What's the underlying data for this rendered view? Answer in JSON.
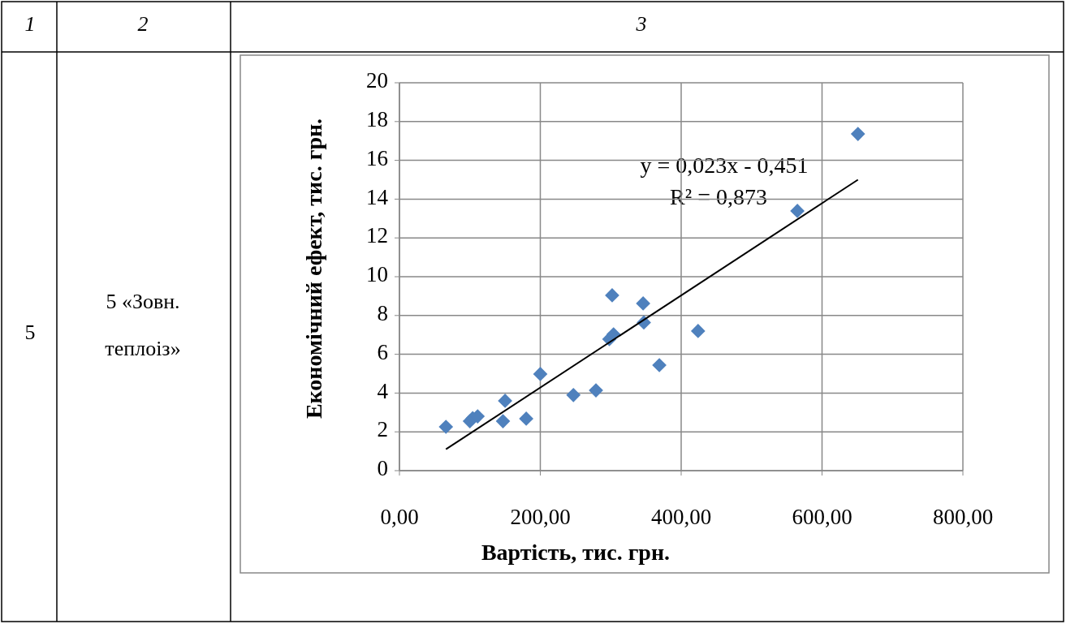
{
  "chart_data": {
    "type": "scatter",
    "xlabel": "Вартість, тис. грн.",
    "ylabel": "Економічний ефект, тис. грн.",
    "annotations": [
      "1",
      "2",
      "3",
      "5",
      "5 «Зовн. теплоіз»",
      "y = 0,023x - 0,451",
      "R² = 0,873"
    ],
    "series": [
      {
        "color": "#4f81bd",
        "marker": "diamond",
        "x": [
          66,
          100,
          104,
          111,
          147,
          150,
          180,
          200,
          247,
          279,
          298,
          304,
          302,
          346,
          347,
          369,
          424,
          565,
          651
        ],
        "values": [
          2.26,
          2.55,
          2.7,
          2.8,
          2.55,
          3.6,
          2.68,
          4.98,
          3.9,
          4.14,
          6.78,
          7.03,
          9.04,
          8.62,
          7.64,
          5.44,
          7.2,
          13.39,
          17.36
        ]
      },
      {
        "type": "line",
        "color": "#000000",
        "marker": "none",
        "x": [
          66,
          651
        ],
        "values": [
          1.1,
          15.0
        ]
      }
    ],
    "xlim": [
      0,
      800
    ],
    "xticks": [
      {
        "value": 0,
        "label": "0,00"
      },
      {
        "value": 200,
        "label": "200,00"
      },
      {
        "value": 400,
        "label": "400,00"
      },
      {
        "value": 600,
        "label": "600,00"
      },
      {
        "value": 800,
        "label": "800,00"
      }
    ],
    "ylim": [
      0,
      20
    ],
    "yticks": [
      0,
      2,
      4,
      6,
      8,
      10,
      12,
      14,
      16,
      18,
      20
    ],
    "grid": true
  }
}
